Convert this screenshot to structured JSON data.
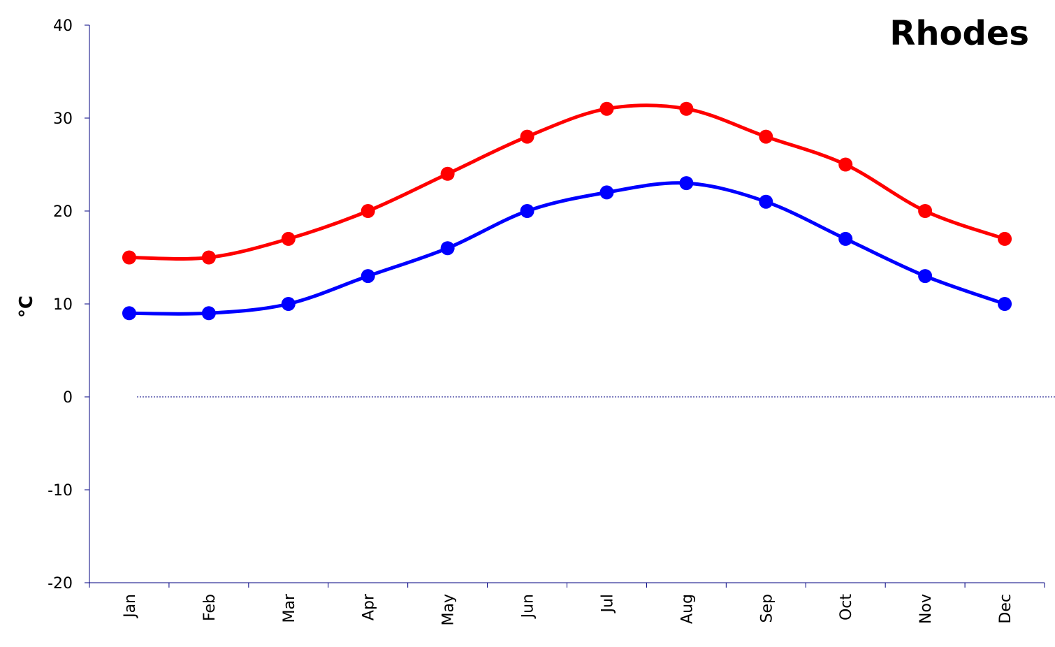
{
  "chart_data": {
    "type": "line",
    "title": "Rhodes",
    "xlabel": "",
    "ylabel": "°C",
    "ylim": [
      -20,
      40
    ],
    "yticks": [
      40,
      30,
      20,
      10,
      0,
      -10,
      -20
    ],
    "categories": [
      "Jan",
      "Feb",
      "Mar",
      "Apr",
      "May",
      "Jun",
      "Jul",
      "Aug",
      "Sep",
      "Oct",
      "Nov",
      "Dec"
    ],
    "series": [
      {
        "values": [
          15,
          15,
          17,
          20,
          24,
          28,
          31,
          31,
          28,
          25,
          20,
          17
        ],
        "color": "#ff0000"
      },
      {
        "values": [
          9,
          9,
          10,
          13,
          16,
          20,
          22,
          23,
          21,
          17,
          13,
          10
        ],
        "color": "#0000ff"
      }
    ],
    "zero_line": true,
    "axis_color": "#000080",
    "grid": false,
    "legend": "none"
  }
}
